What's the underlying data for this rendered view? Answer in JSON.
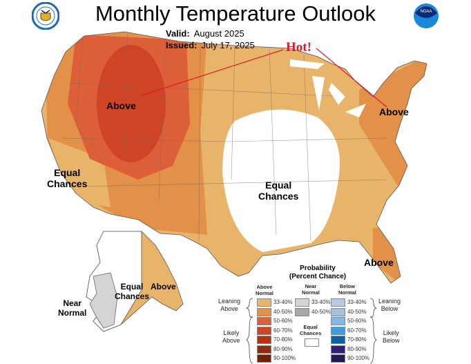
{
  "header": {
    "title": "Monthly Temperature Outlook",
    "valid_label": "Valid:",
    "valid_value": "August 2025",
    "issued_label": "Issued:",
    "issued_value": "July 17, 2025",
    "left_logo": "Department of Commerce seal",
    "right_logo": "NOAA"
  },
  "annotations": {
    "hot": "Hot!",
    "above_northwest": "Above",
    "above_northeast": "Above",
    "above_florida": "Above",
    "above_alaska": "Above",
    "equal_west": [
      "Equal",
      "Chances"
    ],
    "equal_central": [
      "Equal",
      "Chances"
    ],
    "equal_alaska": [
      "Equal",
      "Chances"
    ],
    "near_normal_alaska": [
      "Near",
      "Normal"
    ]
  },
  "legend": {
    "title": "Probability",
    "subtitle": "(Percent Chance)",
    "col_above": [
      "Above",
      "Normal"
    ],
    "col_near": [
      "Near",
      "Normal"
    ],
    "col_below": [
      "Below",
      "Normal"
    ],
    "leaning_above": [
      "Leaning",
      "Above"
    ],
    "likely_above": [
      "Likely",
      "Above"
    ],
    "leaning_below": [
      "Leaning",
      "Below"
    ],
    "likely_below": [
      "Likely",
      "Below"
    ],
    "equal_chances": [
      "Equal",
      "Chances"
    ],
    "above": [
      {
        "range": "33-40%",
        "color": "#e8b46a"
      },
      {
        "range": "40-50%",
        "color": "#e39048"
      },
      {
        "range": "50-60%",
        "color": "#dd5f38"
      },
      {
        "range": "60-70%",
        "color": "#cf4424"
      },
      {
        "range": "70-80%",
        "color": "#b8300e"
      },
      {
        "range": "80-90%",
        "color": "#952a0c"
      },
      {
        "range": "90-100%",
        "color": "#6e2208"
      }
    ],
    "near": [
      {
        "range": "33-40%",
        "color": "#d4d4d4"
      },
      {
        "range": "40-50%",
        "color": "#a8a8a8"
      }
    ],
    "below": [
      {
        "range": "33-40%",
        "color": "#b8c8e8"
      },
      {
        "range": "40-50%",
        "color": "#a8c0e0"
      },
      {
        "range": "50-60%",
        "color": "#80b8e8"
      },
      {
        "range": "60-70%",
        "color": "#3c9ce0"
      },
      {
        "range": "70-80%",
        "color": "#1060a8"
      },
      {
        "range": "80-90%",
        "color": "#30207a"
      },
      {
        "range": "90-100%",
        "color": "#201a58"
      }
    ]
  }
}
